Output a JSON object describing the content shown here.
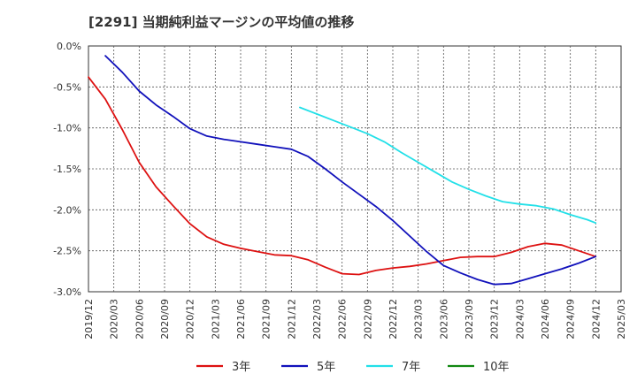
{
  "chart_data": {
    "type": "line",
    "title": "[2291]  当期純利益マージンの平均値の推移",
    "xlabel": "",
    "ylabel": "",
    "x_ticks": [
      "2019/12",
      "2020/03",
      "2020/06",
      "2020/09",
      "2020/12",
      "2021/03",
      "2021/06",
      "2021/09",
      "2021/12",
      "2022/03",
      "2022/06",
      "2022/09",
      "2022/12",
      "2023/03",
      "2023/06",
      "2023/09",
      "2023/12",
      "2024/03",
      "2024/06",
      "2024/09",
      "2024/12",
      "2025/03"
    ],
    "y_ticks": [
      0.0,
      -0.5,
      -1.0,
      -1.5,
      -2.0,
      -2.5,
      -3.0
    ],
    "y_tick_labels": [
      "0.0%",
      "-0.5%",
      "-1.0%",
      "-1.5%",
      "-2.0%",
      "-2.5%",
      "-3.0%"
    ],
    "ylim": [
      -3.0,
      0.0
    ],
    "grid": true,
    "legend_position": "bottom",
    "series": [
      {
        "name": "3年",
        "color": "#dd1111",
        "points": [
          [
            "2019/12",
            -0.38
          ],
          [
            "2020/02",
            -0.65
          ],
          [
            "2020/04",
            -1.02
          ],
          [
            "2020/06",
            -1.42
          ],
          [
            "2020/08",
            -1.72
          ],
          [
            "2020/10",
            -1.95
          ],
          [
            "2020/12",
            -2.17
          ],
          [
            "2021/02",
            -2.33
          ],
          [
            "2021/04",
            -2.42
          ],
          [
            "2021/06",
            -2.47
          ],
          [
            "2021/08",
            -2.51
          ],
          [
            "2021/10",
            -2.55
          ],
          [
            "2021/12",
            -2.56
          ],
          [
            "2022/02",
            -2.61
          ],
          [
            "2022/04",
            -2.7
          ],
          [
            "2022/06",
            -2.78
          ],
          [
            "2022/08",
            -2.79
          ],
          [
            "2022/10",
            -2.74
          ],
          [
            "2022/12",
            -2.71
          ],
          [
            "2023/02",
            -2.69
          ],
          [
            "2023/04",
            -2.66
          ],
          [
            "2023/06",
            -2.62
          ],
          [
            "2023/08",
            -2.58
          ],
          [
            "2023/10",
            -2.57
          ],
          [
            "2023/12",
            -2.57
          ],
          [
            "2024/02",
            -2.52
          ],
          [
            "2024/04",
            -2.45
          ],
          [
            "2024/06",
            -2.41
          ],
          [
            "2024/08",
            -2.43
          ],
          [
            "2024/10",
            -2.5
          ],
          [
            "2024/12",
            -2.57
          ]
        ]
      },
      {
        "name": "5年",
        "color": "#1111bb",
        "points": [
          [
            "2020/02",
            -0.12
          ],
          [
            "2020/04",
            -0.32
          ],
          [
            "2020/06",
            -0.55
          ],
          [
            "2020/08",
            -0.72
          ],
          [
            "2020/10",
            -0.86
          ],
          [
            "2020/12",
            -1.01
          ],
          [
            "2021/02",
            -1.1
          ],
          [
            "2021/04",
            -1.14
          ],
          [
            "2021/06",
            -1.17
          ],
          [
            "2021/08",
            -1.2
          ],
          [
            "2021/10",
            -1.23
          ],
          [
            "2021/12",
            -1.26
          ],
          [
            "2022/02",
            -1.35
          ],
          [
            "2022/04",
            -1.5
          ],
          [
            "2022/06",
            -1.66
          ],
          [
            "2022/08",
            -1.81
          ],
          [
            "2022/10",
            -1.96
          ],
          [
            "2022/12",
            -2.13
          ],
          [
            "2023/02",
            -2.32
          ],
          [
            "2023/04",
            -2.51
          ],
          [
            "2023/06",
            -2.68
          ],
          [
            "2023/08",
            -2.77
          ],
          [
            "2023/10",
            -2.85
          ],
          [
            "2023/12",
            -2.91
          ],
          [
            "2024/02",
            -2.9
          ],
          [
            "2024/04",
            -2.84
          ],
          [
            "2024/06",
            -2.78
          ],
          [
            "2024/08",
            -2.72
          ],
          [
            "2024/10",
            -2.65
          ],
          [
            "2024/12",
            -2.57
          ]
        ]
      },
      {
        "name": "7年",
        "color": "#22e0e8",
        "points": [
          [
            "2022/01",
            -0.75
          ],
          [
            "2022/03",
            -0.83
          ],
          [
            "2022/05",
            -0.91
          ],
          [
            "2022/07",
            -0.99
          ],
          [
            "2022/09",
            -1.07
          ],
          [
            "2022/11",
            -1.17
          ],
          [
            "2023/01",
            -1.3
          ],
          [
            "2023/03",
            -1.42
          ],
          [
            "2023/05",
            -1.54
          ],
          [
            "2023/07",
            -1.66
          ],
          [
            "2023/09",
            -1.75
          ],
          [
            "2023/11",
            -1.83
          ],
          [
            "2024/01",
            -1.9
          ],
          [
            "2024/03",
            -1.93
          ],
          [
            "2024/05",
            -1.95
          ],
          [
            "2024/07",
            -1.99
          ],
          [
            "2024/09",
            -2.06
          ],
          [
            "2024/11",
            -2.12
          ],
          [
            "2024/12",
            -2.16
          ]
        ]
      },
      {
        "name": "10年",
        "color": "#118811",
        "points": []
      }
    ]
  }
}
